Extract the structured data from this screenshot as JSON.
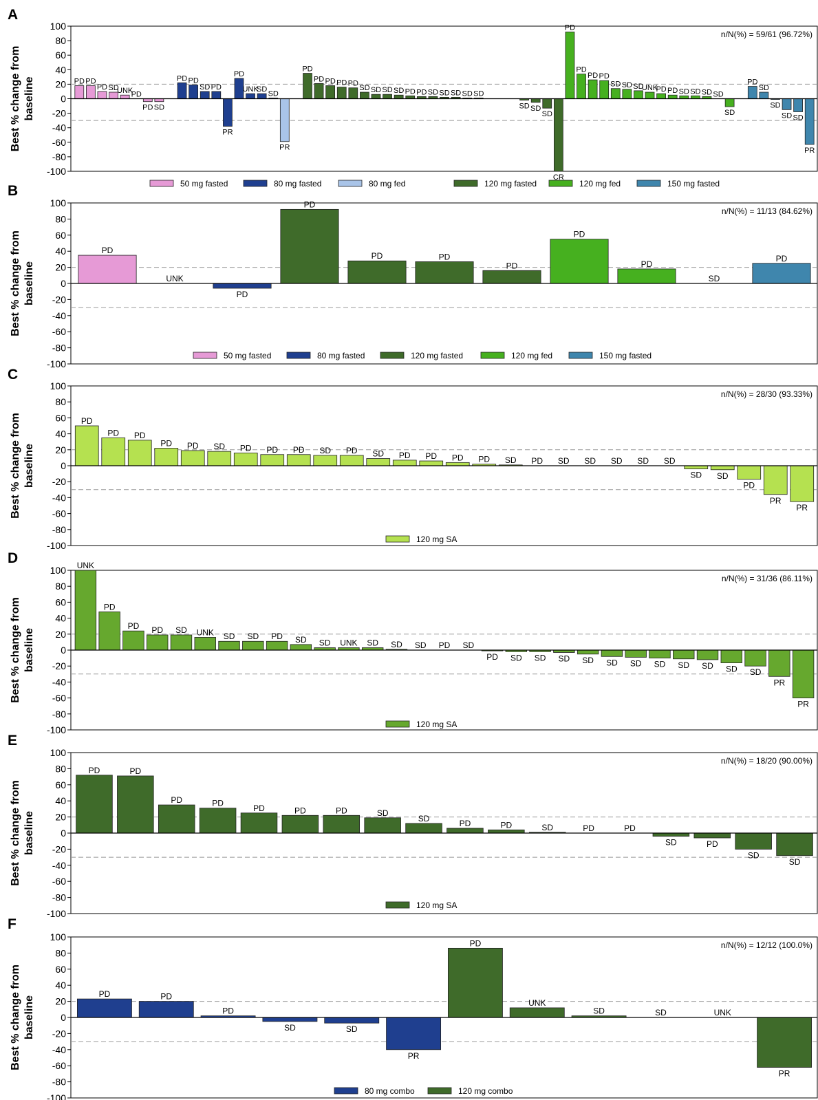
{
  "ylabel": "Best % change from baseline",
  "ylabel_lines": [
    "Best % change from",
    "baseline"
  ],
  "y_ticks": [
    "100",
    "80",
    "60",
    "40",
    "20",
    "0",
    "-20",
    "-40",
    "-60",
    "-80",
    "-100"
  ],
  "colors": {
    "50 mg fasted": "#e69ad6",
    "80 mg fasted": "#1f3f8f",
    "80 mg fed": "#a9c4e8",
    "120 mg fasted": "#3f6b2a",
    "120 mg fed": "#46b01f",
    "150 mg fasted": "#3f86ad",
    "120 mg SA C": "#b5e150",
    "120 mg SA D": "#66a82e",
    "120 mg SA E": "#3f6b2a",
    "80 mg combo": "#1f3f8f",
    "120 mg combo": "#3f6b2a"
  },
  "chart_data": [
    {
      "panel": "A",
      "type": "bar",
      "ylim": [
        -100,
        100
      ],
      "ref_lines": [
        20,
        -30
      ],
      "annotation": "n/N(%) = 59/61 (96.72%)",
      "legend": [
        "50 mg fasted",
        "80 mg fasted",
        "80 mg fed",
        "120 mg fasted",
        "120 mg fed",
        "150 mg fasted"
      ],
      "bars": [
        {
          "v": 18,
          "l": "PD",
          "g": "50 mg fasted"
        },
        {
          "v": 18,
          "l": "PD",
          "g": "50 mg fasted"
        },
        {
          "v": 10,
          "l": "PD",
          "g": "50 mg fasted"
        },
        {
          "v": 9,
          "l": "SD",
          "g": "50 mg fasted"
        },
        {
          "v": 5,
          "l": "UNK",
          "g": "50 mg fasted"
        },
        {
          "v": 0,
          "l": "PD",
          "g": "50 mg fasted"
        },
        {
          "v": -4,
          "l": "PD",
          "g": "50 mg fasted"
        },
        {
          "v": -4,
          "l": "SD",
          "g": "50 mg fasted"
        },
        {
          "v": 0,
          "l": "",
          "g": "50 mg fasted"
        },
        {
          "v": 22,
          "l": "PD",
          "g": "80 mg fasted"
        },
        {
          "v": 19,
          "l": "PD",
          "g": "80 mg fasted"
        },
        {
          "v": 10,
          "l": "SD",
          "g": "80 mg fasted"
        },
        {
          "v": 10,
          "l": "PD",
          "g": "80 mg fasted"
        },
        {
          "v": -38,
          "l": "PR",
          "g": "80 mg fasted"
        },
        {
          "v": 28,
          "l": "PD",
          "g": "80 mg fasted"
        },
        {
          "v": 7,
          "l": "UNK",
          "g": "80 mg fasted"
        },
        {
          "v": 7,
          "l": "SD",
          "g": "80 mg fasted"
        },
        {
          "v": 1,
          "l": "SD",
          "g": "80 mg fasted"
        },
        {
          "v": -59,
          "l": "PR",
          "g": "80 mg fed"
        },
        {
          "v": 0,
          "l": "",
          "g": "80 mg fed"
        },
        {
          "v": 35,
          "l": "PD",
          "g": "120 mg fasted"
        },
        {
          "v": 21,
          "l": "PD",
          "g": "120 mg fasted"
        },
        {
          "v": 18,
          "l": "PD",
          "g": "120 mg fasted"
        },
        {
          "v": 16,
          "l": "PD",
          "g": "120 mg fasted"
        },
        {
          "v": 15,
          "l": "PD",
          "g": "120 mg fasted"
        },
        {
          "v": 9,
          "l": "SD",
          "g": "120 mg fasted"
        },
        {
          "v": 6,
          "l": "SD",
          "g": "120 mg fasted"
        },
        {
          "v": 6,
          "l": "SD",
          "g": "120 mg fasted"
        },
        {
          "v": 5,
          "l": "SD",
          "g": "120 mg fasted"
        },
        {
          "v": 4,
          "l": "PD",
          "g": "120 mg fasted"
        },
        {
          "v": 3,
          "l": "PD",
          "g": "120 mg fasted"
        },
        {
          "v": 3,
          "l": "SD",
          "g": "120 mg fasted"
        },
        {
          "v": 2,
          "l": "SD",
          "g": "120 mg fasted"
        },
        {
          "v": 2,
          "l": "SD",
          "g": "120 mg fasted"
        },
        {
          "v": 1,
          "l": "SD",
          "g": "120 mg fasted"
        },
        {
          "v": 1,
          "l": "SD",
          "g": "120 mg fasted"
        },
        {
          "v": 0,
          "l": "",
          "g": "120 mg fasted"
        },
        {
          "v": 0,
          "l": "",
          "g": "120 mg fasted"
        },
        {
          "v": 0,
          "l": "",
          "g": "120 mg fasted"
        },
        {
          "v": -2,
          "l": "SD",
          "g": "120 mg fasted"
        },
        {
          "v": -5,
          "l": "SD",
          "g": "120 mg fasted"
        },
        {
          "v": -13,
          "l": "SD",
          "g": "120 mg fasted"
        },
        {
          "v": -100,
          "l": "CR",
          "g": "120 mg fasted"
        },
        {
          "v": 92,
          "l": "PD",
          "g": "120 mg fed"
        },
        {
          "v": 34,
          "l": "PD",
          "g": "120 mg fed"
        },
        {
          "v": 26,
          "l": "PD",
          "g": "120 mg fed"
        },
        {
          "v": 25,
          "l": "PD",
          "g": "120 mg fed"
        },
        {
          "v": 14,
          "l": "SD",
          "g": "120 mg fed"
        },
        {
          "v": 13,
          "l": "SD",
          "g": "120 mg fed"
        },
        {
          "v": 11,
          "l": "SD",
          "g": "120 mg fed"
        },
        {
          "v": 9,
          "l": "UNK",
          "g": "120 mg fed"
        },
        {
          "v": 7,
          "l": "PD",
          "g": "120 mg fed"
        },
        {
          "v": 5,
          "l": "PD",
          "g": "120 mg fed"
        },
        {
          "v": 4,
          "l": "SD",
          "g": "120 mg fed"
        },
        {
          "v": 4,
          "l": "SD",
          "g": "120 mg fed"
        },
        {
          "v": 3,
          "l": "SD",
          "g": "120 mg fed"
        },
        {
          "v": 0,
          "l": "SD",
          "g": "120 mg fed"
        },
        {
          "v": -11,
          "l": "SD",
          "g": "120 mg fed"
        },
        {
          "v": 0,
          "l": "",
          "g": "120 mg fed"
        },
        {
          "v": 17,
          "l": "PD",
          "g": "150 mg fasted"
        },
        {
          "v": 9,
          "l": "SD",
          "g": "150 mg fasted"
        },
        {
          "v": -1,
          "l": "SD",
          "g": "150 mg fasted"
        },
        {
          "v": -15,
          "l": "SD",
          "g": "150 mg fasted"
        },
        {
          "v": -18,
          "l": "SD",
          "g": "150 mg fasted"
        },
        {
          "v": -63,
          "l": "PR",
          "g": "150 mg fasted"
        }
      ]
    },
    {
      "panel": "B",
      "type": "bar",
      "ylim": [
        -100,
        100
      ],
      "ref_lines": [
        20,
        -30
      ],
      "annotation": "n/N(%) = 11/13 (84.62%)",
      "legend": [
        "50 mg fasted",
        "80 mg fasted",
        "120 mg fasted",
        "120 mg fed",
        "150 mg fasted"
      ],
      "bars": [
        {
          "v": 35,
          "l": "PD",
          "g": "50 mg fasted"
        },
        {
          "v": 0,
          "l": "UNK",
          "g": "50 mg fasted"
        },
        {
          "v": -6,
          "l": "PD",
          "g": "80 mg fasted"
        },
        {
          "v": 92,
          "l": "PD",
          "g": "120 mg fasted"
        },
        {
          "v": 28,
          "l": "PD",
          "g": "120 mg fasted"
        },
        {
          "v": 27,
          "l": "PD",
          "g": "120 mg fasted"
        },
        {
          "v": 16,
          "l": "PD",
          "g": "120 mg fasted"
        },
        {
          "v": 55,
          "l": "PD",
          "g": "120 mg fed"
        },
        {
          "v": 18,
          "l": "PD",
          "g": "120 mg fed"
        },
        {
          "v": 0,
          "l": "SD",
          "g": "120 mg fed"
        },
        {
          "v": 25,
          "l": "PD",
          "g": "150 mg fasted"
        }
      ]
    },
    {
      "panel": "C",
      "type": "bar",
      "ylim": [
        -100,
        100
      ],
      "ref_lines": [
        20,
        -30
      ],
      "annotation": "n/N(%) = 28/30 (93.33%)",
      "legend": [
        "120 mg SA"
      ],
      "series_color": "120 mg SA C",
      "bars": [
        {
          "v": 50,
          "l": "PD"
        },
        {
          "v": 35,
          "l": "PD"
        },
        {
          "v": 32,
          "l": "PD"
        },
        {
          "v": 22,
          "l": "PD"
        },
        {
          "v": 19,
          "l": "PD"
        },
        {
          "v": 18,
          "l": "SD"
        },
        {
          "v": 16,
          "l": "PD"
        },
        {
          "v": 14,
          "l": "PD"
        },
        {
          "v": 14,
          "l": "PD"
        },
        {
          "v": 13,
          "l": "SD"
        },
        {
          "v": 13,
          "l": "PD"
        },
        {
          "v": 9,
          "l": "SD"
        },
        {
          "v": 7,
          "l": "PD"
        },
        {
          "v": 6,
          "l": "PD"
        },
        {
          "v": 4,
          "l": "PD"
        },
        {
          "v": 2,
          "l": "PD"
        },
        {
          "v": 1,
          "l": "SD"
        },
        {
          "v": 0,
          "l": "PD"
        },
        {
          "v": 0,
          "l": "SD"
        },
        {
          "v": 0,
          "l": "SD"
        },
        {
          "v": 0,
          "l": "SD"
        },
        {
          "v": 0,
          "l": "SD"
        },
        {
          "v": 0,
          "l": "SD"
        },
        {
          "v": -4,
          "l": "SD"
        },
        {
          "v": -5,
          "l": "SD"
        },
        {
          "v": -17,
          "l": "PD"
        },
        {
          "v": -36,
          "l": "PR"
        },
        {
          "v": -45,
          "l": "PR"
        }
      ]
    },
    {
      "panel": "D",
      "type": "bar",
      "ylim": [
        -100,
        100
      ],
      "ref_lines": [
        20,
        -30
      ],
      "annotation": "n/N(%) = 31/36 (86.11%)",
      "legend": [
        "120 mg SA"
      ],
      "series_color": "120 mg SA D",
      "bars": [
        {
          "v": 100,
          "l": "UNK"
        },
        {
          "v": 48,
          "l": "PD"
        },
        {
          "v": 24,
          "l": "PD"
        },
        {
          "v": 19,
          "l": "PD"
        },
        {
          "v": 19,
          "l": "SD"
        },
        {
          "v": 16,
          "l": "UNK"
        },
        {
          "v": 11,
          "l": "SD"
        },
        {
          "v": 11,
          "l": "SD"
        },
        {
          "v": 11,
          "l": "PD"
        },
        {
          "v": 7,
          "l": "SD"
        },
        {
          "v": 3,
          "l": "SD"
        },
        {
          "v": 3,
          "l": "UNK"
        },
        {
          "v": 3,
          "l": "SD"
        },
        {
          "v": 1,
          "l": "SD"
        },
        {
          "v": 0,
          "l": "SD"
        },
        {
          "v": 0,
          "l": "PD"
        },
        {
          "v": 0,
          "l": "SD"
        },
        {
          "v": -1,
          "l": "PD"
        },
        {
          "v": -2,
          "l": "SD"
        },
        {
          "v": -2,
          "l": "SD"
        },
        {
          "v": -3,
          "l": "SD"
        },
        {
          "v": -5,
          "l": "SD"
        },
        {
          "v": -8,
          "l": "SD"
        },
        {
          "v": -9,
          "l": "SD"
        },
        {
          "v": -10,
          "l": "SD"
        },
        {
          "v": -11,
          "l": "SD"
        },
        {
          "v": -12,
          "l": "SD"
        },
        {
          "v": -16,
          "l": "SD"
        },
        {
          "v": -20,
          "l": "SD"
        },
        {
          "v": -33,
          "l": "PR"
        },
        {
          "v": -60,
          "l": "PR"
        }
      ]
    },
    {
      "panel": "E",
      "type": "bar",
      "ylim": [
        -100,
        100
      ],
      "ref_lines": [
        20,
        -30
      ],
      "annotation": "n/N(%) = 18/20 (90.00%)",
      "legend": [
        "120 mg SA"
      ],
      "series_color": "120 mg SA E",
      "bars": [
        {
          "v": 72,
          "l": "PD"
        },
        {
          "v": 71,
          "l": "PD"
        },
        {
          "v": 35,
          "l": "PD"
        },
        {
          "v": 31,
          "l": "PD"
        },
        {
          "v": 25,
          "l": "PD"
        },
        {
          "v": 22,
          "l": "PD"
        },
        {
          "v": 22,
          "l": "PD"
        },
        {
          "v": 19,
          "l": "SD"
        },
        {
          "v": 12,
          "l": "SD"
        },
        {
          "v": 6,
          "l": "PD"
        },
        {
          "v": 4,
          "l": "PD"
        },
        {
          "v": 1,
          "l": "SD"
        },
        {
          "v": 0,
          "l": "PD"
        },
        {
          "v": 0,
          "l": "PD"
        },
        {
          "v": -4,
          "l": "SD"
        },
        {
          "v": -6,
          "l": "PD"
        },
        {
          "v": -20,
          "l": "SD"
        },
        {
          "v": -28,
          "l": "SD"
        }
      ]
    },
    {
      "panel": "F",
      "type": "bar",
      "ylim": [
        -100,
        100
      ],
      "ref_lines": [
        20,
        -30
      ],
      "annotation": "n/N(%) = 12/12 (100.0%)",
      "legend": [
        "80 mg combo",
        "120 mg combo"
      ],
      "bars": [
        {
          "v": 23,
          "l": "PD",
          "g": "80 mg combo"
        },
        {
          "v": 20,
          "l": "PD",
          "g": "80 mg combo"
        },
        {
          "v": 2,
          "l": "PD",
          "g": "80 mg combo"
        },
        {
          "v": -5,
          "l": "SD",
          "g": "80 mg combo"
        },
        {
          "v": -7,
          "l": "SD",
          "g": "80 mg combo"
        },
        {
          "v": -40,
          "l": "PR",
          "g": "80 mg combo"
        },
        {
          "v": 86,
          "l": "PD",
          "g": "120 mg combo"
        },
        {
          "v": 12,
          "l": "UNK",
          "g": "120 mg combo"
        },
        {
          "v": 2,
          "l": "SD",
          "g": "120 mg combo"
        },
        {
          "v": 0,
          "l": "SD",
          "g": "120 mg combo"
        },
        {
          "v": 0,
          "l": "UNK",
          "g": "120 mg combo"
        },
        {
          "v": -62,
          "l": "PR",
          "g": "120 mg combo"
        }
      ]
    }
  ]
}
